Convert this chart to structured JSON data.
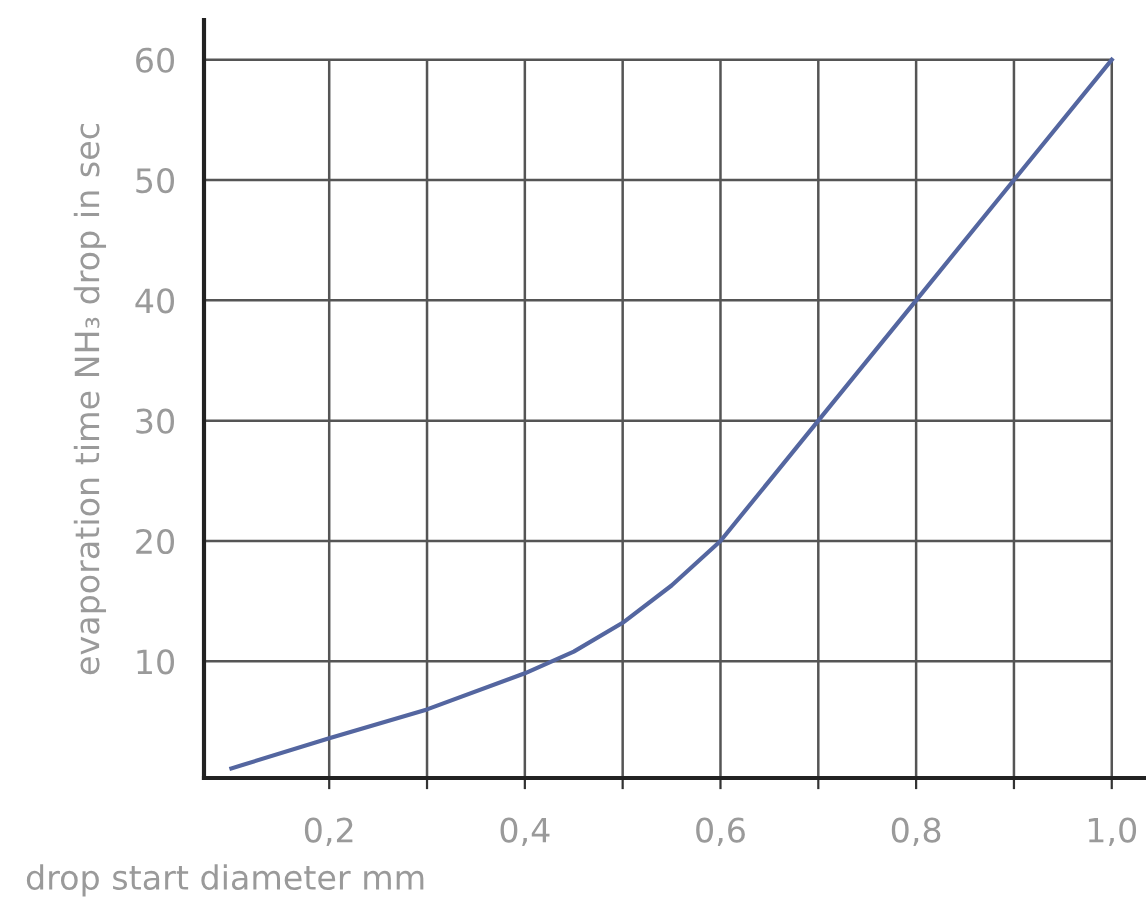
{
  "chart_data": {
    "type": "line",
    "xlabel": "drop start diameter mm",
    "ylabel": "evaporation time NH₃ drop in sec",
    "x": [
      0.1,
      0.2,
      0.3,
      0.4,
      0.45,
      0.5,
      0.55,
      0.6,
      0.65,
      0.7,
      0.8,
      0.9,
      1.0
    ],
    "series": [
      {
        "color": "#5466a0",
        "values": [
          1.1,
          3.6,
          6.0,
          9.0,
          10.8,
          13.2,
          16.3,
          20,
          25,
          30,
          40,
          50,
          60
        ]
      }
    ],
    "xlim": [
      0.072,
      1.035
    ],
    "ylim": [
      0.3,
      63.3
    ],
    "xticks": [
      {
        "value": 0.2,
        "label": "0,2"
      },
      {
        "value": 0.3,
        "label": null
      },
      {
        "value": 0.4,
        "label": "0,4"
      },
      {
        "value": 0.5,
        "label": null
      },
      {
        "value": 0.6,
        "label": "0,6"
      },
      {
        "value": 0.7,
        "label": null
      },
      {
        "value": 0.8,
        "label": "0,8"
      },
      {
        "value": 0.9,
        "label": null
      },
      {
        "value": 1.0,
        "label": "1,0"
      }
    ],
    "yticks": [
      10,
      20,
      30,
      40,
      50,
      60
    ],
    "grid": true,
    "marker": "none",
    "line_style": "solid",
    "legend": false
  }
}
